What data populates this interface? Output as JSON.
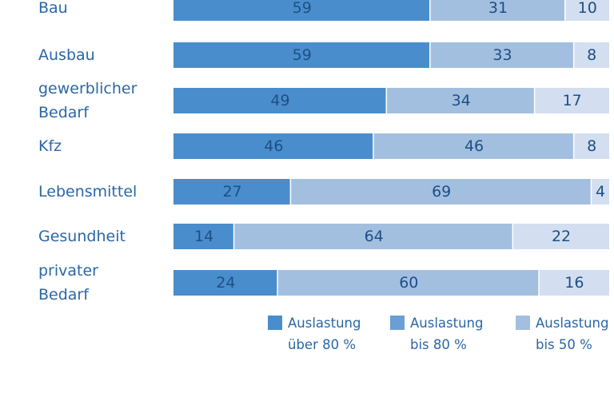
{
  "chart_data": {
    "type": "bar",
    "orientation": "horizontal",
    "stacked": true,
    "categories": [
      [
        "Bau"
      ],
      [
        "Ausbau"
      ],
      [
        "gewerblicher",
        "Bedarf"
      ],
      [
        "Kfz"
      ],
      [
        "Lebensmittel"
      ],
      [
        "Gesundheit"
      ],
      [
        "privater",
        "Bedarf"
      ]
    ],
    "series": [
      {
        "name": "Auslastung über 80 %",
        "legend_lines": [
          "Auslastung",
          "über 80 %"
        ],
        "color": "#4a8dcc",
        "values": [
          59,
          59,
          49,
          46,
          27,
          14,
          24
        ]
      },
      {
        "name": "Auslastung bis 80 %",
        "legend_lines": [
          "Auslastung",
          "bis 80 %"
        ],
        "color": "#a3bfe0",
        "values": [
          31,
          33,
          34,
          46,
          69,
          64,
          60
        ]
      },
      {
        "name": "Auslastung bis 50 %",
        "legend_lines": [
          "Auslastung",
          "bis 50 %"
        ],
        "color": "#d3dff0",
        "values": [
          10,
          8,
          17,
          8,
          4,
          22,
          16
        ]
      }
    ],
    "xlim": [
      0,
      100
    ],
    "grid": false,
    "legend_position": "bottom-right",
    "legend_swatch_colors": [
      "#4a8dcc",
      "#6b9fd4",
      "#a3bfe0"
    ],
    "text_color": "#2a67a6",
    "value_label_color": "#1d4f86"
  }
}
